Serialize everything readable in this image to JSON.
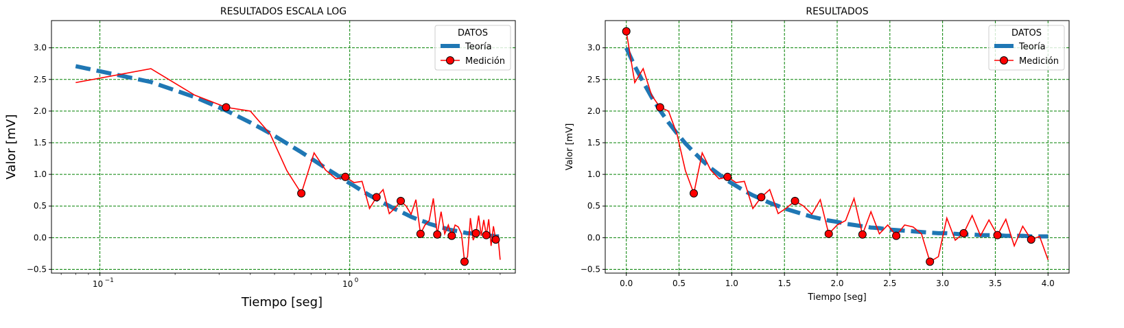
{
  "chart_data": [
    {
      "type": "line",
      "title": "RESULTADOS ESCALA LOG",
      "xlabel": "Tiempo [seg]",
      "ylabel": "Valor [mV]",
      "xscale": "log",
      "xlim": [
        0.064,
        4.6
      ],
      "ylim": [
        -0.56,
        3.43
      ],
      "x_ticks": [
        {
          "value": 0.1,
          "base": "10",
          "exp": "−1"
        },
        {
          "value": 1,
          "base": "10",
          "exp": "0"
        }
      ],
      "y_ticks": [
        {
          "value": -0.5,
          "label": "−0.5"
        },
        {
          "value": 0,
          "label": "0.0"
        },
        {
          "value": 0.5,
          "label": "0.5"
        },
        {
          "value": 1,
          "label": "1.0"
        },
        {
          "value": 1.5,
          "label": "1.5"
        },
        {
          "value": 2,
          "label": "2.0"
        },
        {
          "value": 2.5,
          "label": "2.5"
        },
        {
          "value": 3,
          "label": "3.0"
        }
      ],
      "grid": true,
      "legend_placement": "top-right",
      "legend_title": "DATOS"
    },
    {
      "type": "line",
      "title": "RESULTADOS",
      "xlabel": "Tiempo [seg]",
      "ylabel": "Valor [mV]",
      "xscale": "linear",
      "xlim": [
        -0.2,
        4.2
      ],
      "ylim": [
        -0.56,
        3.43
      ],
      "x_ticks": [
        {
          "value": 0,
          "label": "0.0"
        },
        {
          "value": 0.5,
          "label": "0.5"
        },
        {
          "value": 1,
          "label": "1.0"
        },
        {
          "value": 1.5,
          "label": "1.5"
        },
        {
          "value": 2,
          "label": "2.0"
        },
        {
          "value": 2.5,
          "label": "2.5"
        },
        {
          "value": 3,
          "label": "3.0"
        },
        {
          "value": 3.5,
          "label": "3.5"
        },
        {
          "value": 4,
          "label": "4.0"
        }
      ],
      "y_ticks": [
        {
          "value": -0.5,
          "label": "−0.5"
        },
        {
          "value": 0,
          "label": "0.0"
        },
        {
          "value": 0.5,
          "label": "0.5"
        },
        {
          "value": 1,
          "label": "1.0"
        },
        {
          "value": 1.5,
          "label": "1.5"
        },
        {
          "value": 2,
          "label": "2.0"
        },
        {
          "value": 2.5,
          "label": "2.5"
        },
        {
          "value": 3,
          "label": "3.0"
        }
      ],
      "grid": true,
      "legend_placement": "top-right",
      "legend_title": "DATOS"
    }
  ],
  "series": {
    "theory": {
      "name": "Teoría",
      "color": "#1f77b4",
      "style": "dashed",
      "formula_note": "3·exp(−1.25·t)",
      "x": [
        0,
        0.08,
        0.16,
        0.24,
        0.32,
        0.4,
        0.48,
        0.56,
        0.64,
        0.72,
        0.8,
        0.88,
        0.96,
        1.04,
        1.12,
        1.2,
        1.28,
        1.36,
        1.44,
        1.52,
        1.6,
        1.68,
        1.76,
        1.84,
        1.92,
        2.0,
        2.08,
        2.16,
        2.24,
        2.32,
        2.4,
        2.48,
        2.56,
        2.64,
        2.72,
        2.8,
        2.88,
        2.96,
        3.04,
        3.12,
        3.2,
        3.28,
        3.36,
        3.44,
        3.52,
        3.6,
        3.68,
        3.76,
        3.84,
        3.92,
        4.0
      ],
      "y": [
        3.0,
        2.71,
        2.46,
        2.22,
        2.01,
        1.82,
        1.65,
        1.49,
        1.35,
        1.22,
        1.1,
        1.0,
        0.9,
        0.82,
        0.74,
        0.67,
        0.61,
        0.55,
        0.5,
        0.45,
        0.41,
        0.37,
        0.33,
        0.3,
        0.27,
        0.25,
        0.22,
        0.2,
        0.18,
        0.16,
        0.15,
        0.13,
        0.12,
        0.11,
        0.1,
        0.09,
        0.08,
        0.07,
        0.07,
        0.06,
        0.05,
        0.05,
        0.04,
        0.04,
        0.04,
        0.03,
        0.03,
        0.03,
        0.02,
        0.02,
        0.02
      ]
    },
    "measurement": {
      "name": "Medición",
      "color": "#ff0000",
      "marker_every": 4,
      "x": [
        0,
        0.08,
        0.16,
        0.24,
        0.32,
        0.4,
        0.48,
        0.56,
        0.64,
        0.72,
        0.8,
        0.88,
        0.96,
        1.04,
        1.12,
        1.2,
        1.28,
        1.36,
        1.44,
        1.52,
        1.6,
        1.68,
        1.76,
        1.84,
        1.92,
        2.0,
        2.08,
        2.16,
        2.24,
        2.32,
        2.4,
        2.48,
        2.56,
        2.64,
        2.72,
        2.8,
        2.88,
        2.96,
        3.04,
        3.12,
        3.2,
        3.28,
        3.36,
        3.44,
        3.52,
        3.6,
        3.68,
        3.76,
        3.84,
        3.92,
        4.0
      ],
      "y": [
        3.26,
        2.45,
        2.67,
        2.25,
        2.06,
        2.0,
        1.64,
        1.06,
        0.7,
        1.34,
        1.07,
        0.93,
        0.96,
        0.87,
        0.89,
        0.46,
        0.64,
        0.76,
        0.38,
        0.47,
        0.58,
        0.5,
        0.37,
        0.6,
        0.06,
        0.2,
        0.27,
        0.62,
        0.05,
        0.41,
        0.06,
        0.2,
        0.03,
        0.2,
        0.17,
        0.06,
        -0.38,
        -0.3,
        0.31,
        -0.04,
        0.07,
        0.35,
        0.03,
        0.28,
        0.04,
        0.29,
        -0.13,
        0.18,
        -0.03,
        0.02,
        -0.35
      ]
    }
  }
}
